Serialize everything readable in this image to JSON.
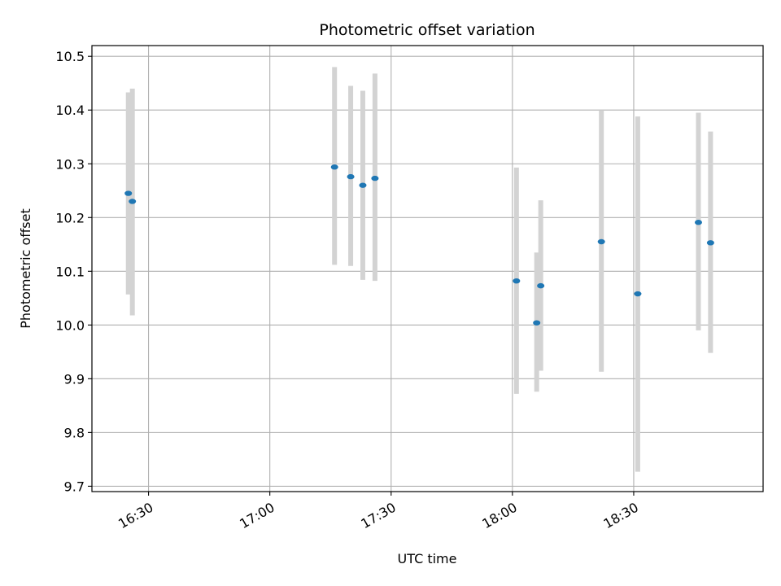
{
  "chart_data": {
    "type": "scatter",
    "title": "Photometric offset variation",
    "xlabel": "UTC time",
    "ylabel": "Photometric offset",
    "grid": true,
    "x_unit": "UTC time (HH:MM)",
    "xlim": [
      "16:16",
      "19:02"
    ],
    "ylim": [
      9.69,
      10.52
    ],
    "x_ticks": [
      "16:30",
      "17:00",
      "17:30",
      "18:00",
      "18:30"
    ],
    "y_ticks": [
      "9.7",
      "9.8",
      "9.9",
      "10.0",
      "10.1",
      "10.2",
      "10.3",
      "10.4",
      "10.5"
    ],
    "colors": {
      "points": "#1f77b4",
      "errorbars": "#d3d3d3",
      "grid": "#b0b0b0"
    },
    "series": [
      {
        "points": [
          {
            "x": "16:25",
            "y": 10.245,
            "low": 10.057,
            "high": 10.433
          },
          {
            "x": "16:26",
            "y": 10.23,
            "low": 10.018,
            "high": 10.44
          },
          {
            "x": "17:16",
            "y": 10.294,
            "low": 10.112,
            "high": 10.48
          },
          {
            "x": "17:20",
            "y": 10.276,
            "low": 10.11,
            "high": 10.445
          },
          {
            "x": "17:23",
            "y": 10.26,
            "low": 10.084,
            "high": 10.436
          },
          {
            "x": "17:26",
            "y": 10.273,
            "low": 10.082,
            "high": 10.468
          },
          {
            "x": "18:01",
            "y": 10.082,
            "low": 9.872,
            "high": 10.293
          },
          {
            "x": "18:06",
            "y": 10.004,
            "low": 9.876,
            "high": 10.135
          },
          {
            "x": "18:07",
            "y": 10.073,
            "low": 9.915,
            "high": 10.232
          },
          {
            "x": "18:22",
            "y": 10.155,
            "low": 9.913,
            "high": 10.4
          },
          {
            "x": "18:31",
            "y": 10.058,
            "low": 9.727,
            "high": 10.388
          },
          {
            "x": "18:46",
            "y": 10.191,
            "low": 9.99,
            "high": 10.395
          },
          {
            "x": "18:49",
            "y": 10.153,
            "low": 9.948,
            "high": 10.36
          }
        ]
      }
    ]
  }
}
